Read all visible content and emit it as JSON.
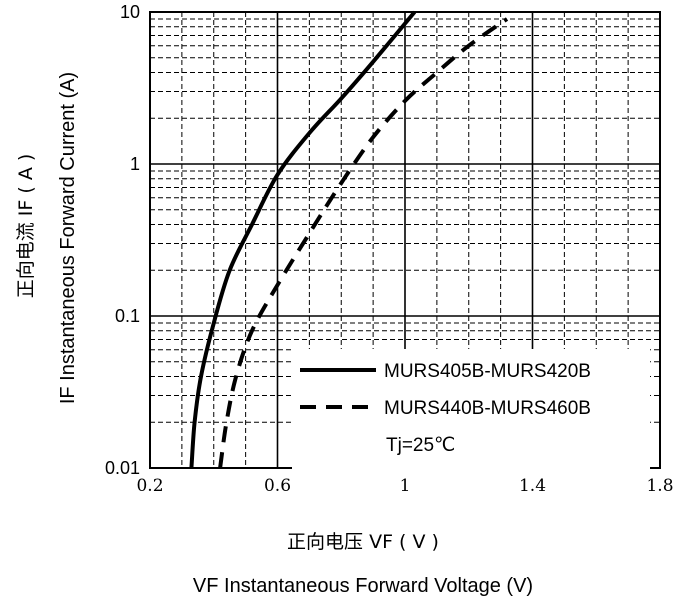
{
  "chart_data": {
    "type": "line",
    "x_scale": "linear",
    "y_scale": "log",
    "xlim": [
      0.2,
      1.8
    ],
    "ylim": [
      0.01,
      10
    ],
    "x_ticks": [
      "0.2",
      "0.6",
      "1",
      "1.4",
      "1.8"
    ],
    "x_tick_values": [
      0.2,
      0.6,
      1.0,
      1.4,
      1.8
    ],
    "y_ticks": [
      "0.01",
      "0.1",
      "1",
      "10"
    ],
    "y_tick_values": [
      0.01,
      0.1,
      1,
      10
    ],
    "xlabel_cn": "正向电压  VF ( V )",
    "xlabel": "VF  Instantaneous Forward Voltage (V)",
    "ylabel_cn": "正向电流  IF ( A )",
    "ylabel": "IF Instantaneous Forward Current (A)",
    "grid": true,
    "legend_position": "bottom-right",
    "annotation": "Tj=25℃",
    "series": [
      {
        "name": "MURS405B-MURS420B",
        "style": "solid",
        "x": [
          0.33,
          0.34,
          0.36,
          0.4,
          0.45,
          0.52,
          0.6,
          0.7,
          0.8,
          0.9,
          1.03
        ],
        "y": [
          0.01,
          0.02,
          0.04,
          0.09,
          0.2,
          0.4,
          0.85,
          1.6,
          2.7,
          4.7,
          10
        ]
      },
      {
        "name": "MURS440B-MURS460B",
        "style": "dashed",
        "x": [
          0.42,
          0.44,
          0.47,
          0.52,
          0.6,
          0.7,
          0.8,
          0.9,
          1.0,
          1.1,
          1.2,
          1.32
        ],
        "y": [
          0.01,
          0.02,
          0.04,
          0.08,
          0.16,
          0.35,
          0.75,
          1.5,
          2.6,
          4.0,
          6.0,
          9.0
        ]
      }
    ]
  }
}
